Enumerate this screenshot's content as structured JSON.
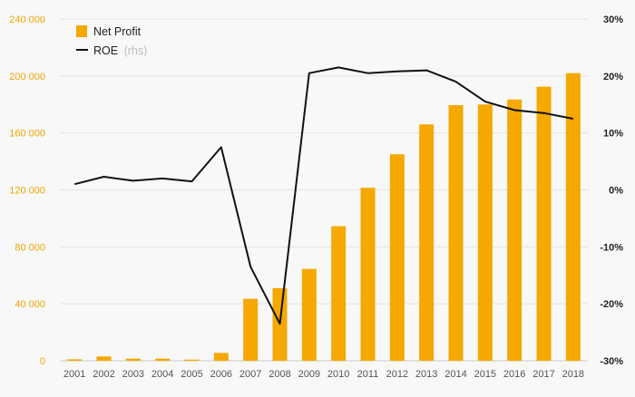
{
  "chart_data": {
    "type": "bar",
    "categories": [
      "2001",
      "2002",
      "2003",
      "2004",
      "2005",
      "2006",
      "2007",
      "2008",
      "2009",
      "2010",
      "2011",
      "2012",
      "2013",
      "2014",
      "2015",
      "2016",
      "2017",
      "2018"
    ],
    "series": [
      {
        "name": "Net Profit",
        "type": "bar",
        "axis": "left",
        "color": "#f5a800",
        "values": [
          1000,
          3000,
          1500,
          1500,
          800,
          5500,
          43500,
          51000,
          64500,
          94500,
          121500,
          145000,
          166000,
          179500,
          180000,
          183500,
          192500,
          202000
        ]
      },
      {
        "name": "ROE",
        "name_suffix": "(rhs)",
        "type": "line",
        "axis": "right",
        "color": "#111111",
        "values": [
          1.0,
          2.3,
          1.6,
          2.0,
          1.5,
          7.5,
          -13.5,
          -23.5,
          20.5,
          21.5,
          20.5,
          20.8,
          21.0,
          19.0,
          15.5,
          14.0,
          13.5,
          12.5
        ]
      }
    ],
    "y_left": {
      "ylim": [
        0,
        240000
      ],
      "ticks": [
        0,
        40000,
        80000,
        120000,
        160000,
        200000,
        240000
      ],
      "tick_labels": [
        "0",
        "40 000",
        "80 000",
        "120 000",
        "160 000",
        "200 000",
        "240 000"
      ],
      "color": "#f0a500"
    },
    "y_right": {
      "ylim": [
        -30,
        30
      ],
      "ticks": [
        -30,
        -20,
        -10,
        0,
        10,
        20,
        30
      ],
      "tick_labels": [
        "-30%",
        "-20%",
        "-10%",
        "0%",
        "10%",
        "20%",
        "30%"
      ]
    },
    "grid": true,
    "legend_position": "top-left"
  }
}
